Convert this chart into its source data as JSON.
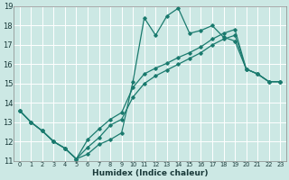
{
  "title": "",
  "xlabel": "Humidex (Indice chaleur)",
  "ylabel": "",
  "xlim": [
    -0.5,
    23.5
  ],
  "ylim": [
    11,
    19
  ],
  "xticks": [
    0,
    1,
    2,
    3,
    4,
    5,
    6,
    7,
    8,
    9,
    10,
    11,
    12,
    13,
    14,
    15,
    16,
    17,
    18,
    19,
    20,
    21,
    22,
    23
  ],
  "yticks": [
    11,
    12,
    13,
    14,
    15,
    16,
    17,
    18,
    19
  ],
  "bg_color": "#cce8e4",
  "grid_color": "#ffffff",
  "line_color": "#1a7a6e",
  "line1_x": [
    0,
    1,
    2,
    3,
    4,
    5,
    6,
    7,
    8,
    9,
    10,
    11,
    12,
    13,
    14,
    15,
    16,
    17,
    18,
    19,
    20,
    21,
    22,
    23
  ],
  "line1_y": [
    13.6,
    13.0,
    12.55,
    12.0,
    11.65,
    11.1,
    11.35,
    11.85,
    12.1,
    12.45,
    15.1,
    18.4,
    17.5,
    18.5,
    18.9,
    17.6,
    17.75,
    18.0,
    17.4,
    17.2,
    15.75,
    15.5,
    15.1,
    15.1
  ],
  "line2_x": [
    0,
    1,
    2,
    3,
    4,
    5,
    6,
    7,
    8,
    9,
    10,
    11,
    12,
    13,
    14,
    15,
    16,
    17,
    18,
    19,
    20,
    21,
    22,
    23
  ],
  "line2_y": [
    13.6,
    13.0,
    12.55,
    12.0,
    11.65,
    11.1,
    11.7,
    12.2,
    12.85,
    13.15,
    14.3,
    15.0,
    15.4,
    15.7,
    16.0,
    16.3,
    16.6,
    17.0,
    17.3,
    17.5,
    15.75,
    15.5,
    15.1,
    15.1
  ],
  "line3_x": [
    0,
    1,
    2,
    3,
    4,
    5,
    6,
    7,
    8,
    9,
    10,
    11,
    12,
    13,
    14,
    15,
    16,
    17,
    18,
    19,
    20,
    21,
    22,
    23
  ],
  "line3_y": [
    13.6,
    13.0,
    12.55,
    12.0,
    11.65,
    11.1,
    12.1,
    12.65,
    13.15,
    13.5,
    14.8,
    15.5,
    15.8,
    16.05,
    16.35,
    16.6,
    16.9,
    17.3,
    17.6,
    17.8,
    15.75,
    15.5,
    15.1,
    15.1
  ]
}
